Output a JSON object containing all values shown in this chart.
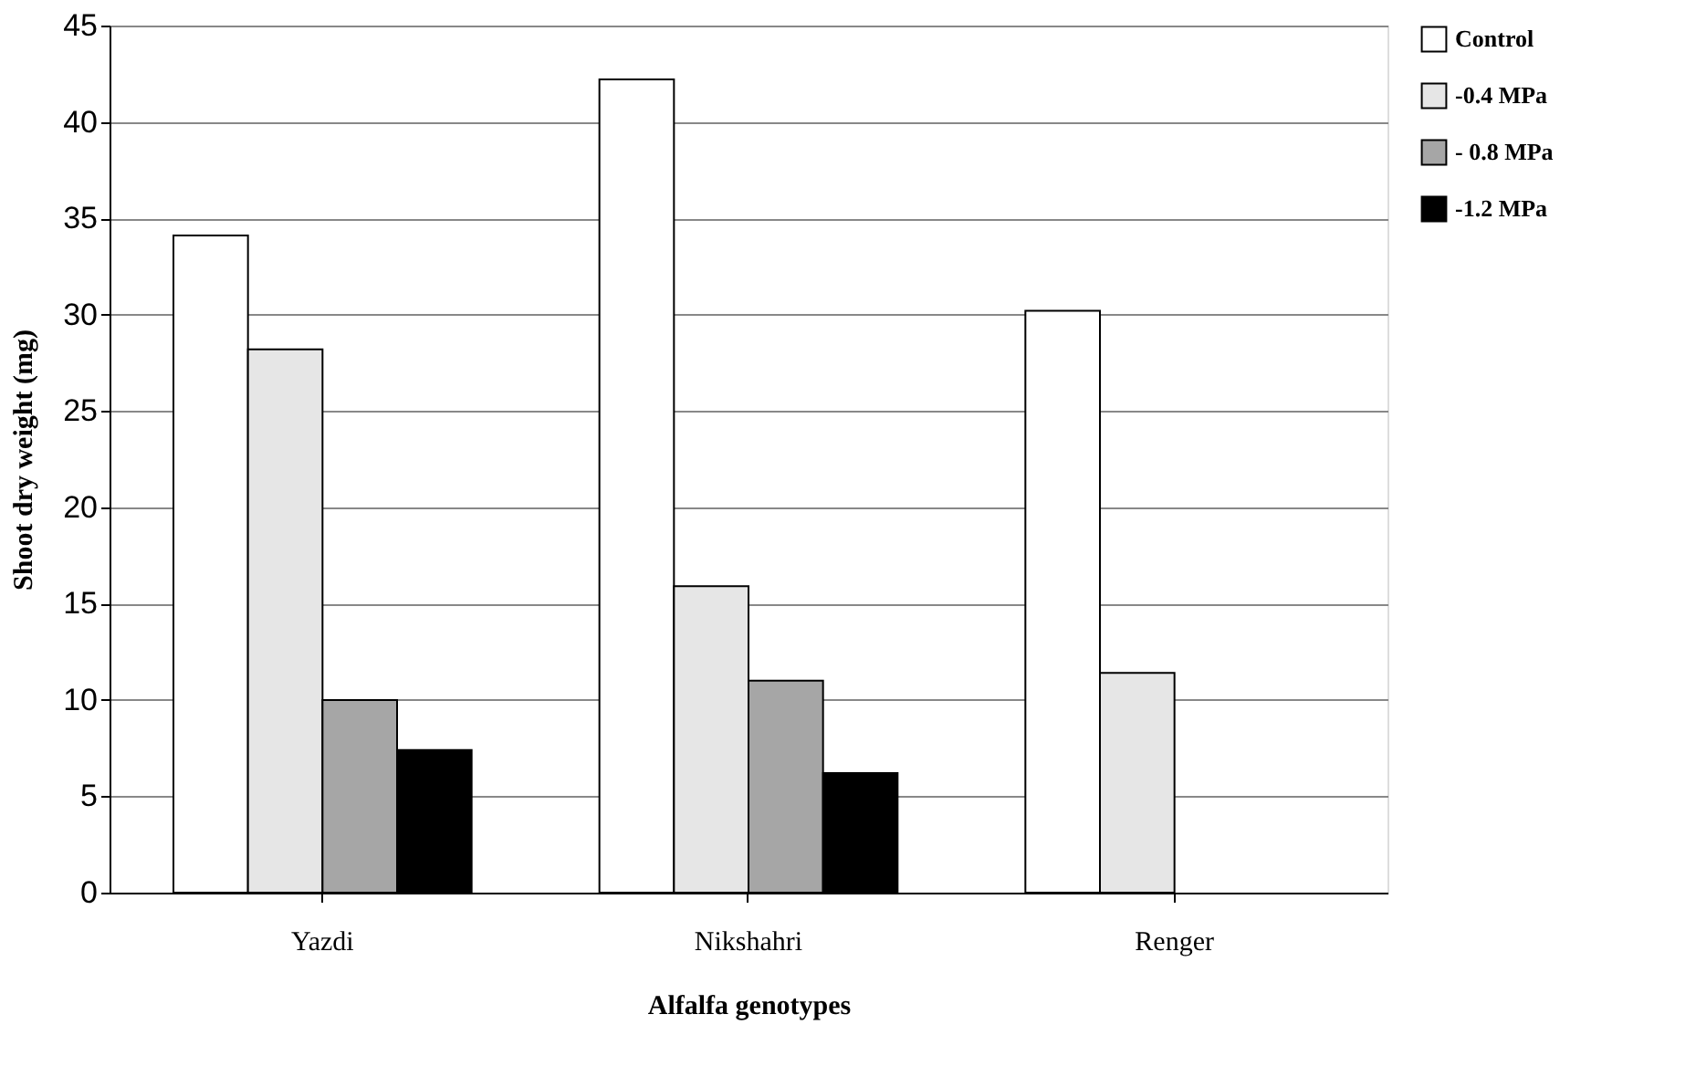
{
  "chart_data": {
    "type": "bar",
    "xlabel": "Alfalfa genotypes",
    "ylabel": "Shoot dry weight (mg)",
    "categories": [
      "Yazdi",
      "Nikshahri",
      "Renger"
    ],
    "series": [
      {
        "name": "Control",
        "color": "#ffffff",
        "values": [
          34.1,
          42.2,
          30.2
        ]
      },
      {
        "name": "-0.4 MPa",
        "color": "#e6e6e6",
        "values": [
          28.2,
          15.9,
          11.4
        ]
      },
      {
        "name": "- 0.8 MPa",
        "color": "#a6a6a6",
        "values": [
          10,
          11,
          null
        ]
      },
      {
        "name": "-1.2 MPa",
        "color": "#000000",
        "values": [
          7.4,
          6.2,
          null
        ]
      }
    ],
    "ylim": [
      0,
      45
    ],
    "yticks": [
      0,
      5,
      10,
      15,
      20,
      25,
      30,
      35,
      40,
      45
    ],
    "grid": "y",
    "legend": "right"
  }
}
